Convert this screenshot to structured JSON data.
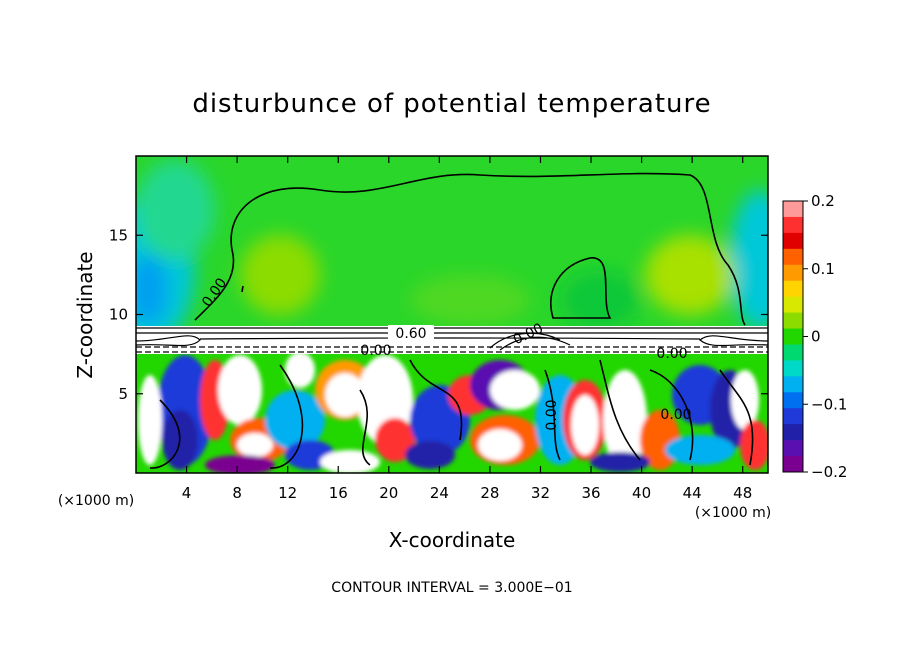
{
  "chart_data": {
    "type": "heatmap",
    "title": "disturbunce of potential temperature",
    "xlabel": "X-coordinate",
    "ylabel": "Z-coordinate",
    "x_unit": "(×1000 m)",
    "x_ticks": [
      4,
      8,
      12,
      16,
      20,
      24,
      28,
      32,
      36,
      40,
      44,
      48
    ],
    "y_ticks": [
      5,
      10,
      15
    ],
    "xlim": [
      0,
      50
    ],
    "ylim": [
      0,
      20
    ],
    "colorbar": {
      "ticks": [
        "0.2",
        "0.1",
        "0",
        "−0.1",
        "−0.2"
      ],
      "range": [
        -0.2,
        0.2
      ],
      "colors": [
        "#ff9a9a",
        "#ff3030",
        "#e10000",
        "#ff6000",
        "#ff9a00",
        "#ffd400",
        "#d8e800",
        "#8cdc00",
        "#22d600",
        "#00d870",
        "#00d8c8",
        "#00b0f0",
        "#0070f0",
        "#1f3ad8",
        "#2020a8",
        "#5a10b0",
        "#7a0090"
      ]
    },
    "contour_labels": [
      "0.60",
      "0.00",
      "0.00",
      "0.00",
      "0.00",
      "0.00",
      "0.00"
    ],
    "footer": "CONTOUR INTERVAL = 3.000E−01"
  }
}
